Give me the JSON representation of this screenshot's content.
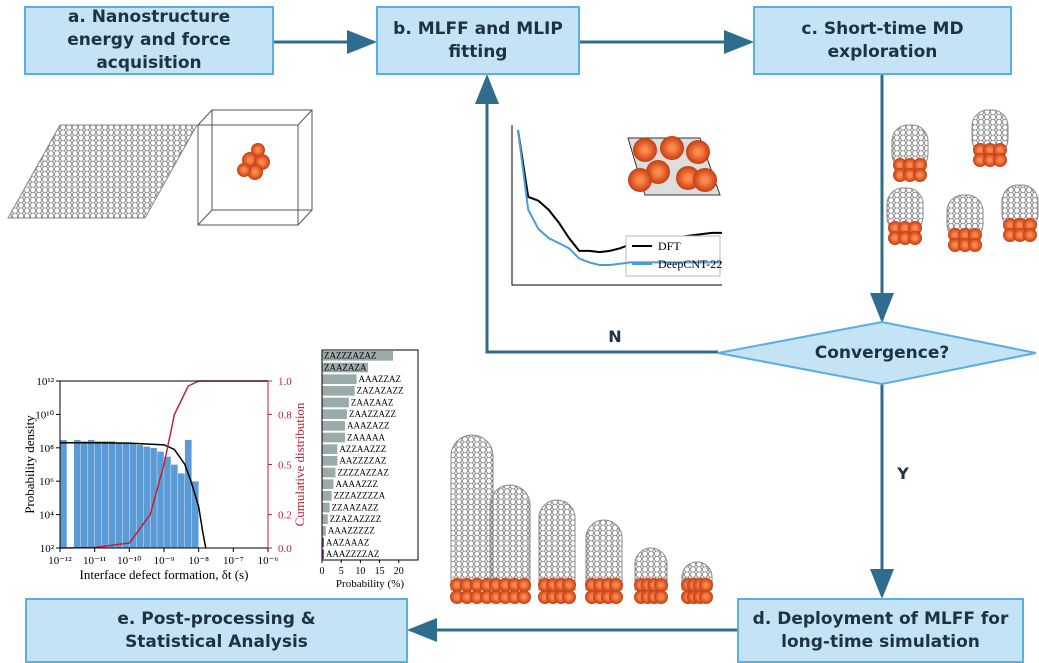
{
  "nodes": [
    {
      "label": "a. Nanostructure energy and force acquisition"
    },
    {
      "label": "b. MLFF and MLIP fitting"
    },
    {
      "label": "c. Short-time MD exploration"
    },
    {
      "label": "d. Deployment of MLFF for long-time simulation"
    },
    {
      "label": "e. Post-processing & Statistical Analysis"
    }
  ],
  "decision": {
    "label": "Convergence?",
    "no": "N",
    "yes": "Y"
  },
  "energy_plot": {
    "type": "line",
    "x": [
      0,
      1,
      2,
      3,
      4,
      5,
      6,
      7,
      8,
      9,
      10,
      11,
      12,
      13,
      14,
      15,
      16,
      17,
      18,
      19,
      20
    ],
    "series": [
      {
        "name": "DFT",
        "color": "#000000",
        "values": [
          17.2,
          12,
          11.7,
          11,
          10,
          8.8,
          7.8,
          7.8,
          7.7,
          7.8,
          8,
          8.3,
          8.5,
          8.6,
          8.7,
          8.8,
          8.9,
          9,
          9.1,
          9.2,
          9.2
        ]
      },
      {
        "name": "DeepCNT-22",
        "color": "#4a9bd6",
        "values": [
          17.2,
          11,
          9.5,
          8.8,
          8.4,
          8,
          7.2,
          6.9,
          6.7,
          6.7,
          6.8,
          6.9,
          6.9,
          6.9,
          6.9,
          6.9,
          6.9,
          6.9,
          6.9,
          6.9,
          6.9
        ]
      }
    ]
  },
  "defect_plot": {
    "type": "histogram",
    "xlabel": "Interface defect formation, δt (s)",
    "ylabel": "Probability density",
    "y2label": "Cumulative distribution",
    "log_x": true,
    "log_y": true,
    "xlim": [
      1e-12,
      1e-06
    ],
    "ylim": [
      100,
      1000000000000.0
    ],
    "y2lim": [
      0,
      1
    ],
    "xticks": [
      {
        "value": 1e-12,
        "label": "10⁻¹²"
      },
      {
        "value": 1e-11,
        "label": "10⁻¹¹"
      },
      {
        "value": 1e-10,
        "label": "10⁻¹⁰"
      },
      {
        "value": 1e-09,
        "label": "10⁻⁹"
      },
      {
        "value": 1e-08,
        "label": "10⁻⁸"
      },
      {
        "value": 1e-07,
        "label": "10⁻⁷"
      },
      {
        "value": 1e-06,
        "label": "10⁻⁶"
      }
    ],
    "yticks": [
      {
        "value": 100,
        "label": "10²"
      },
      {
        "value": 10000,
        "label": "10⁴"
      },
      {
        "value": 1000000,
        "label": "10⁶"
      },
      {
        "value": 100000000,
        "label": "10⁸"
      },
      {
        "value": 10000000000,
        "label": "10¹⁰"
      },
      {
        "value": 1000000000000,
        "label": "10¹²"
      }
    ],
    "y2ticks": [
      {
        "value": 0,
        "label": "0.0"
      },
      0.2,
      0.5,
      0.8,
      {
        "value": 1,
        "label": "1.0"
      }
    ],
    "color": "#5b9bd5",
    "bins": [
      1e-12,
      1.585e-12,
      2.512e-12,
      3.981e-12,
      6.31e-12,
      1e-11,
      1.585e-11,
      2.512e-11,
      3.981e-11,
      6.31e-11,
      1e-10,
      1.585e-10,
      2.512e-10,
      3.981e-10,
      6.31e-10,
      1e-09,
      1.585e-09,
      2.512e-09,
      3.981e-09,
      6.31e-09,
      1e-08
    ],
    "counts": [
      300000000,
      null,
      300000000,
      250000000,
      300000000,
      250000000,
      250000000,
      250000000,
      200000000,
      200000000,
      200000000,
      150000000,
      120000000,
      100000000,
      60000000,
      30000000,
      10000000,
      3000000,
      300000000,
      1000000
    ],
    "fit": {
      "color": "#000000",
      "x": [
        1e-12,
        1e-11,
        1e-10,
        1e-09,
        2e-09,
        4e-09,
        6e-09,
        1e-08,
        1.3e-08,
        1.6e-08
      ],
      "values": [
        200000000,
        200000000,
        190000000,
        150000000,
        80000000,
        10000000,
        1000000,
        30000,
        1000,
        100
      ]
    },
    "cdf": {
      "color": "#c0213a",
      "x": [
        1e-12,
        1e-11,
        1e-10,
        4e-10,
        1e-09,
        2e-09,
        5e-09,
        1e-08,
        1e-07,
        1e-06
      ],
      "values": [
        0,
        0.003,
        0.03,
        0.2,
        0.5,
        0.8,
        0.97,
        1,
        1,
        1
      ]
    }
  },
  "sequence_plot": {
    "type": "bar",
    "horizontal": true,
    "xlabel": "Probability (%)",
    "categories": [
      "ZAZZZAZAZ",
      "ZAAZAZA",
      "AAAZZAZ",
      "ZAZAZAZZ",
      "ZAAZAAZ",
      "ZAAZZAZZ",
      "AAAZAZZ",
      "ZAAAAA",
      "AZZAAZZZ",
      "AAZZZZAZ",
      "ZZZZAZZAZ",
      "AAAAZZZ",
      "ZZZAZZZZA",
      "ZZAAZAZZ",
      "ZZAZAZZZZ",
      "AAAZZZZZ",
      "AAZAAAZ",
      "AAAZZZZAZ"
    ],
    "values": [
      18.5,
      12,
      9,
      8.5,
      7,
      6.5,
      6,
      6,
      4,
      4,
      3.5,
      3,
      2.5,
      2,
      1.5,
      1,
      0.5,
      0.5
    ],
    "colors": [
      "#9aaba9",
      "#9aaba9",
      "#9aaba9",
      "#9aaba9",
      "#9aaba9",
      "#9aaba9",
      "#9aaba9",
      "#9aaba9",
      "#9aaba9",
      "#9aaba9",
      "#9aaba9",
      "#9aaba9",
      "#9aaba9",
      "#9aaba9",
      "#9aaba9",
      "#9aaba9",
      "#7a3f9a",
      "#7a3f9a"
    ],
    "xlim": [
      0,
      25
    ],
    "xticks": [
      0,
      5,
      10,
      15,
      20
    ]
  }
}
